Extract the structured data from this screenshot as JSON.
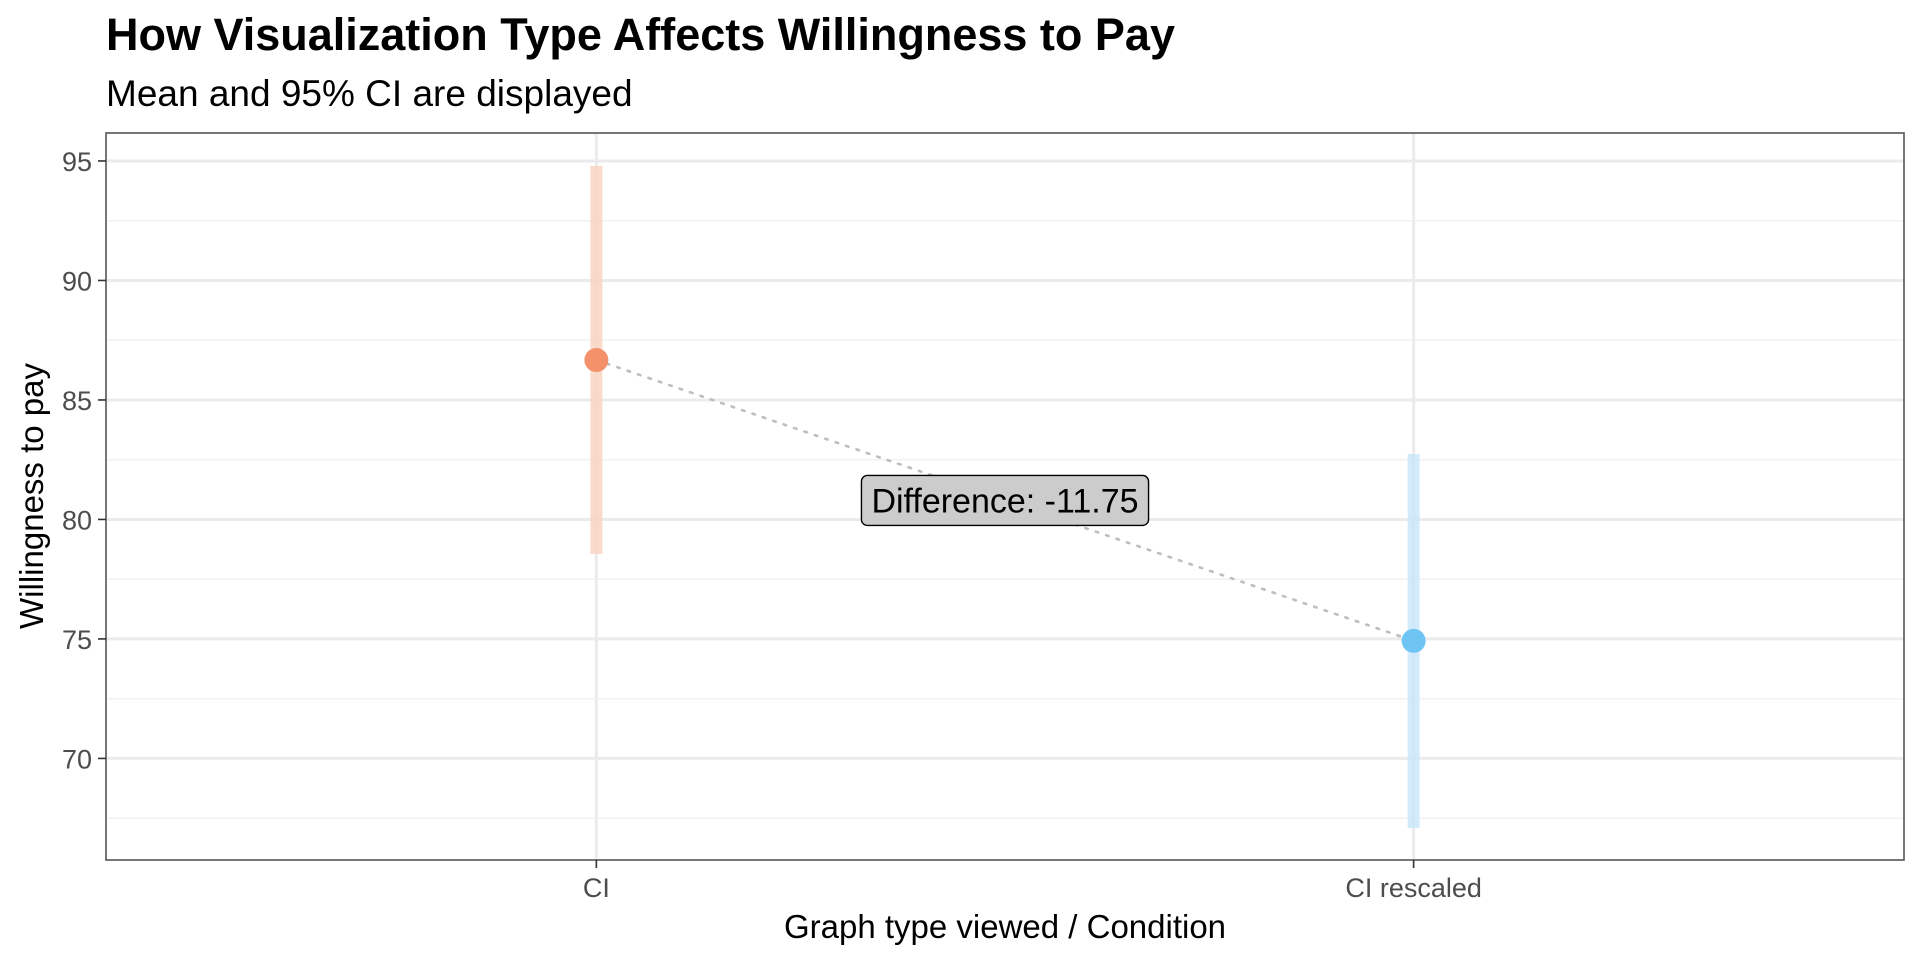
{
  "chart_data": {
    "type": "scatter",
    "title": "How Visualization Type Affects Willingness to Pay",
    "subtitle": "Mean and 95% CI are displayed",
    "xlabel": "Graph type viewed / Condition",
    "ylabel": "Willingness to pay",
    "categories": [
      "CI",
      "CI rescaled"
    ],
    "y_ticks": [
      70,
      75,
      80,
      85,
      90,
      95
    ],
    "y_tick_labels": [
      "70",
      "75",
      "80",
      "85",
      "90",
      "95"
    ],
    "y_minor_ticks": [
      67.5,
      72.5,
      77.5,
      82.5,
      87.5,
      92.5
    ],
    "ylim": [
      65.75,
      96.17
    ],
    "grid": true,
    "series": [
      {
        "name": "CI",
        "mean": 86.67,
        "ci_lower": 78.56,
        "ci_upper": 94.79,
        "color": "#F4916A",
        "errorbar_color": "#F9D3C2"
      },
      {
        "name": "CI rescaled",
        "mean": 74.92,
        "ci_lower": 67.09,
        "ci_upper": 82.74,
        "color": "#6EC5F4",
        "errorbar_color": "#C9E8FA"
      }
    ],
    "connector": {
      "style": "dotted",
      "color": "#BEBEBE"
    },
    "annotation": {
      "text": "Difference: -11.75",
      "value": -11.75,
      "fill": "#CCCCCC",
      "border": "#000000"
    },
    "colors": {
      "grid_major": "#EBEBEB",
      "grid_minor": "#F2F2F2",
      "panel_border": "#555555",
      "tick_text": "#4D4D4D"
    }
  }
}
